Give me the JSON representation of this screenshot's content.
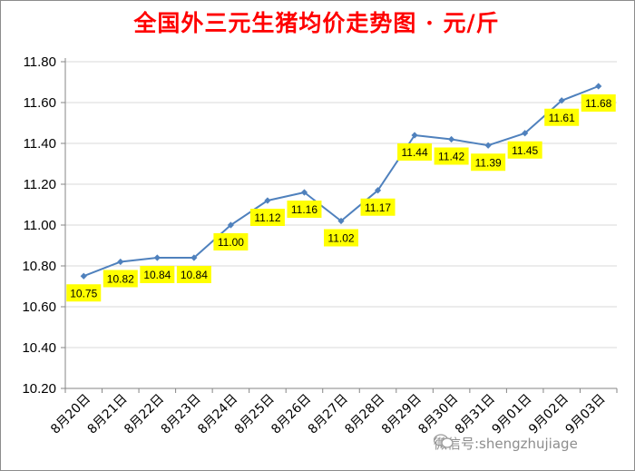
{
  "chart_data": {
    "type": "line",
    "title": "全国外三元生猪均价走势图 · 元/斤",
    "categories": [
      "8月20日",
      "8月21日",
      "8月22日",
      "8月23日",
      "8月24日",
      "8月25日",
      "8月26日",
      "8月27日",
      "8月28日",
      "8月29日",
      "8月30日",
      "8月31日",
      "9月01日",
      "9月02日",
      "9月03日"
    ],
    "series": [
      {
        "values": [
          10.75,
          10.82,
          10.84,
          10.84,
          11.0,
          11.12,
          11.16,
          11.02,
          11.17,
          11.44,
          11.42,
          11.39,
          11.45,
          11.61,
          11.68
        ]
      }
    ],
    "data_labels": [
      "10.75",
      "10.82",
      "10.84",
      "10.84",
      "11.00",
      "11.12",
      "11.16",
      "11.02",
      "11.17",
      "11.44",
      "11.42",
      "11.39",
      "11.45",
      "11.61",
      "11.68"
    ],
    "yticks": [
      "10.20",
      "10.40",
      "10.60",
      "10.80",
      "11.00",
      "11.20",
      "11.40",
      "11.60",
      "11.80"
    ],
    "ylim": [
      10.2,
      11.8
    ],
    "grid": true,
    "legend": "none",
    "colors": {
      "line": "#4f81bd",
      "marker": "#4f81bd",
      "label_bg": "#ffff00",
      "grid": "#d9d9d9",
      "title": "#ff0000"
    }
  },
  "watermark": {
    "text": "微信号:shengzhujiage",
    "icon": "wechat-icon"
  }
}
